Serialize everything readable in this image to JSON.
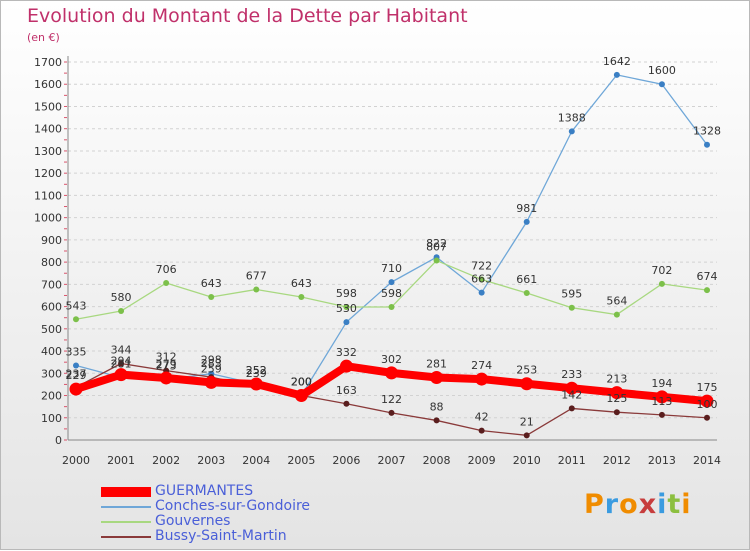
{
  "title": "Evolution du Montant de la Dette par Habitant",
  "subtitle": "(en €)",
  "logo": {
    "text": [
      "P",
      "r",
      "o",
      "x",
      "i",
      "t",
      "i"
    ],
    "colors": [
      "#f08c00",
      "#3a9be0",
      "#f08c00",
      "#c73d3d",
      "#3a9be0",
      "#8cbf3f",
      "#f08c00"
    ]
  },
  "chart_data": {
    "type": "line",
    "categories": [
      "2000",
      "2001",
      "2002",
      "2003",
      "2004",
      "2005",
      "2006",
      "2007",
      "2008",
      "2009",
      "2010",
      "2011",
      "2012",
      "2013",
      "2014"
    ],
    "ylim": [
      0,
      1700
    ],
    "yticks": [
      0,
      100,
      200,
      300,
      400,
      500,
      600,
      700,
      800,
      900,
      1000,
      1100,
      1200,
      1300,
      1400,
      1500,
      1600,
      1700
    ],
    "grid": "horizontal-dashed",
    "legend_position": "bottom-left",
    "series": [
      {
        "name": "Conches-sur-Gondoire",
        "color": "#6fa7d8",
        "marker": "#3a7fc4",
        "values": [
          335,
          281,
          273,
          298,
          252,
          200,
          530,
          710,
          822,
          663,
          981,
          1388,
          1642,
          1600,
          1328
        ],
        "labels": [
          "335",
          "281",
          "273",
          "298",
          "252",
          "200",
          "530",
          "710",
          "822",
          "663",
          "981",
          "1388",
          "1642",
          "1600",
          "1328"
        ]
      },
      {
        "name": "Gouvernes",
        "color": "#a8d880",
        "marker": "#7cc04a",
        "values": [
          543,
          580,
          706,
          643,
          677,
          643,
          598,
          598,
          807,
          722,
          661,
          595,
          564,
          702,
          674
        ],
        "labels": [
          "543",
          "580",
          "706",
          "643",
          "677",
          "643",
          "598",
          "598",
          "807",
          "722",
          "661",
          "595",
          "564",
          "702",
          "674"
        ]
      },
      {
        "name": "Bussy-Saint-Martin",
        "color": "#8a3a3a",
        "marker": "#5a1e1e",
        "values": [
          237,
          344,
          312,
          283,
          239,
          200,
          163,
          122,
          88,
          42,
          21,
          142,
          125,
          113,
          100
        ],
        "labels": [
          "237",
          "344",
          "312",
          "283",
          "239",
          "200",
          "163",
          "122",
          "88",
          "42",
          "21",
          "142",
          "125",
          "113",
          "100"
        ]
      },
      {
        "name": "GUERMANTES",
        "color": "#ff0000",
        "marker": "#ff0000",
        "values": [
          229,
          294,
          279,
          259,
          252,
          200,
          332,
          302,
          281,
          274,
          253,
          233,
          213,
          194,
          175
        ],
        "labels": [
          "229",
          "294",
          "279",
          "259",
          "252",
          "200",
          "332",
          "302",
          "281",
          "274",
          "253",
          "233",
          "213",
          "194",
          "175"
        ]
      }
    ]
  }
}
